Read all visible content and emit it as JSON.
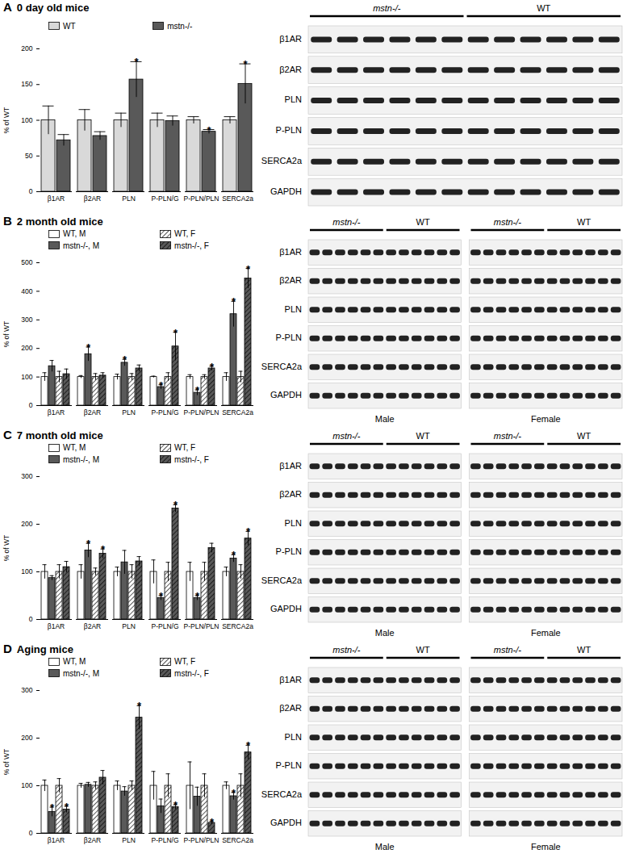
{
  "chart_data": [
    {
      "type": "bar",
      "panel": "A",
      "title": "0 day old mice",
      "y_label": "% of WT",
      "annotation_text": "*",
      "categories": [
        "β1AR",
        "β2AR",
        "PLN",
        "P-PLN/G",
        "P-PLN/PLN",
        "SERCA2a"
      ],
      "ylim": [
        0,
        200
      ],
      "yticks": [
        0,
        50,
        100,
        150,
        200
      ],
      "series": [
        {
          "name": "WT",
          "color": "#d9d9d9",
          "values": [
            100,
            100,
            100,
            100,
            100,
            100
          ],
          "errors": [
            20,
            15,
            10,
            10,
            5,
            5
          ],
          "significant": [
            false,
            false,
            false,
            false,
            false,
            false
          ]
        },
        {
          "name": "mstn-/-",
          "color": "#595959",
          "values": [
            72,
            78,
            157,
            99,
            84,
            151
          ],
          "errors": [
            8,
            6,
            25,
            7,
            3,
            28
          ],
          "significant": [
            false,
            false,
            true,
            false,
            true,
            true
          ]
        }
      ],
      "blot": {
        "columns": [
          {
            "groups": [
              "mstn-/-",
              "WT"
            ]
          }
        ],
        "rows": [
          "β1AR",
          "β2AR",
          "PLN",
          "P-PLN",
          "SERCA2a",
          "GAPDH"
        ]
      }
    },
    {
      "type": "bar",
      "panel": "B",
      "title": "2 month old mice",
      "y_label": "% of WT",
      "annotation_text": "*",
      "categories": [
        "β1AR",
        "β2AR",
        "PLN",
        "P-PLN/G",
        "P-PLN/PLN",
        "SERCA2a"
      ],
      "ylim": [
        0,
        500
      ],
      "yticks": [
        0,
        100,
        200,
        300,
        400,
        500
      ],
      "series": [
        {
          "name": "WT, M",
          "color": "#ffffff",
          "values": [
            100,
            100,
            100,
            100,
            100,
            100
          ],
          "errors": [
            15,
            5,
            10,
            3,
            8,
            15
          ],
          "significant": [
            false,
            false,
            false,
            false,
            false,
            false
          ]
        },
        {
          "name": "mstn-/-, M",
          "color": "#595959",
          "values": [
            138,
            180,
            150,
            65,
            45,
            320
          ],
          "errors": [
            20,
            25,
            12,
            8,
            10,
            45
          ],
          "significant": [
            false,
            true,
            true,
            true,
            true,
            true
          ]
        },
        {
          "name": "WT, F",
          "color": "#ffffff",
          "marker": "hatch",
          "values": [
            100,
            100,
            100,
            100,
            100,
            100
          ],
          "errors": [
            20,
            12,
            12,
            15,
            8,
            20
          ],
          "significant": [
            false,
            false,
            false,
            false,
            false,
            false
          ]
        },
        {
          "name": "mstn-/-, F",
          "color": "#595959",
          "marker": "hatch",
          "values": [
            110,
            105,
            130,
            207,
            130,
            445
          ],
          "errors": [
            18,
            10,
            12,
            50,
            8,
            35
          ],
          "significant": [
            false,
            false,
            false,
            true,
            true,
            true
          ]
        }
      ],
      "blot": {
        "columns": [
          {
            "title": "Male",
            "groups": [
              "mstn-/-",
              "WT"
            ]
          },
          {
            "title": "Female",
            "groups": [
              "mstn-/-",
              "WT"
            ]
          }
        ],
        "rows": [
          "β1AR",
          "β2AR",
          "PLN",
          "P-PLN",
          "SERCA2a",
          "GAPDH"
        ]
      }
    },
    {
      "type": "bar",
      "panel": "C",
      "title": "7 month old mice",
      "y_label": "% of WT",
      "annotation_text": "*",
      "categories": [
        "β1AR",
        "β2AR",
        "PLN",
        "P-PLN/G",
        "P-PLN/PLN",
        "SERCA2a"
      ],
      "ylim": [
        0,
        300
      ],
      "yticks": [
        0,
        100,
        200,
        300
      ],
      "series": [
        {
          "name": "WT, M",
          "color": "#ffffff",
          "values": [
            100,
            100,
            100,
            100,
            100,
            100
          ],
          "errors": [
            15,
            15,
            10,
            25,
            20,
            10
          ],
          "significant": [
            false,
            false,
            false,
            false,
            false,
            false
          ]
        },
        {
          "name": "mstn-/-, M",
          "color": "#595959",
          "values": [
            87,
            145,
            120,
            45,
            45,
            128
          ],
          "errors": [
            5,
            15,
            25,
            5,
            5,
            8
          ],
          "significant": [
            false,
            true,
            false,
            true,
            true,
            true
          ]
        },
        {
          "name": "WT, F",
          "color": "#ffffff",
          "marker": "hatch",
          "values": [
            100,
            100,
            100,
            100,
            100,
            100
          ],
          "errors": [
            15,
            8,
            15,
            20,
            20,
            15
          ],
          "significant": [
            false,
            false,
            false,
            false,
            false,
            false
          ]
        },
        {
          "name": "mstn-/-, F",
          "color": "#595959",
          "marker": "hatch",
          "values": [
            110,
            138,
            122,
            233,
            150,
            170
          ],
          "errors": [
            12,
            10,
            10,
            8,
            10,
            15
          ],
          "significant": [
            false,
            true,
            false,
            true,
            false,
            true
          ]
        }
      ],
      "blot": {
        "columns": [
          {
            "title": "Male",
            "groups": [
              "mstn-/-",
              "WT"
            ]
          },
          {
            "title": "Female",
            "groups": [
              "mstn-/-",
              "WT"
            ]
          }
        ],
        "rows": [
          "β1AR",
          "β2AR",
          "PLN",
          "P-PLN",
          "SERCA2a",
          "GAPDH"
        ]
      }
    },
    {
      "type": "bar",
      "panel": "D",
      "title": "Aging mice",
      "y_label": "% of WT",
      "annotation_text": "*",
      "categories": [
        "β1AR",
        "β2AR",
        "PLN",
        "P-PLN/G",
        "P-PLN/PLN",
        "SERCA2a"
      ],
      "ylim": [
        0,
        300
      ],
      "yticks": [
        0,
        100,
        200,
        300
      ],
      "series": [
        {
          "name": "WT, M",
          "color": "#ffffff",
          "values": [
            100,
            100,
            100,
            100,
            100,
            100
          ],
          "errors": [
            12,
            5,
            10,
            30,
            50,
            8
          ],
          "significant": [
            false,
            false,
            false,
            false,
            false,
            false
          ]
        },
        {
          "name": "mstn-/-, M",
          "color": "#595959",
          "values": [
            45,
            102,
            88,
            57,
            77,
            78
          ],
          "errors": [
            10,
            5,
            10,
            15,
            20,
            8
          ],
          "significant": [
            true,
            false,
            false,
            false,
            false,
            true
          ]
        },
        {
          "name": "WT, F",
          "color": "#ffffff",
          "marker": "hatch",
          "values": [
            100,
            100,
            100,
            100,
            100,
            100
          ],
          "errors": [
            15,
            8,
            10,
            25,
            25,
            25
          ],
          "significant": [
            false,
            false,
            false,
            false,
            false,
            false
          ]
        },
        {
          "name": "mstn-/-, F",
          "color": "#595959",
          "marker": "hatch",
          "values": [
            50,
            117,
            243,
            55,
            22,
            170
          ],
          "errors": [
            7,
            15,
            25,
            5,
            3,
            15
          ],
          "significant": [
            true,
            false,
            true,
            true,
            true,
            true
          ]
        }
      ],
      "blot": {
        "columns": [
          {
            "title": "Male",
            "groups": [
              "mstn-/-",
              "WT"
            ]
          },
          {
            "title": "Female",
            "groups": [
              "mstn-/-",
              "WT"
            ]
          }
        ],
        "rows": [
          "β1AR",
          "β2AR",
          "PLN",
          "P-PLN",
          "SERCA2a",
          "GAPDH"
        ]
      }
    }
  ]
}
